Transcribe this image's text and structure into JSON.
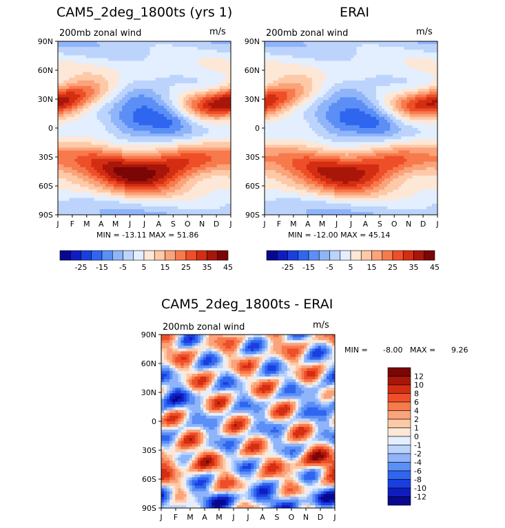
{
  "colors": {
    "scale": [
      "#08088f",
      "#0f1dc0",
      "#1a3fe0",
      "#2f66f0",
      "#5c8ff5",
      "#8fb4fa",
      "#bcd4fc",
      "#e3effe",
      "#fde7d6",
      "#fdc9a7",
      "#fba37a",
      "#f77a4d",
      "#ee4f28",
      "#d42e12",
      "#a8160a",
      "#7a0606"
    ],
    "frame": "#000000"
  },
  "months": [
    "J",
    "F",
    "M",
    "A",
    "M",
    "J",
    "J",
    "A",
    "S",
    "O",
    "N",
    "D",
    "J"
  ],
  "lats": [
    "90N",
    "60N",
    "30N",
    "0",
    "30S",
    "60S",
    "90S"
  ],
  "chart_data": [
    {
      "type": "heatmap",
      "title": "CAM5_2deg_1800ts (yrs 1)",
      "variable": "200mb zonal wind",
      "units": "m/s",
      "x": [
        "J",
        "F",
        "M",
        "A",
        "M",
        "J",
        "J",
        "A",
        "S",
        "O",
        "N",
        "D",
        "J"
      ],
      "y": [
        "90N",
        "60N",
        "30N",
        "0",
        "30S",
        "60S",
        "90S"
      ],
      "stats": "MIN = -13.11  MAX =  51.86",
      "colorbar_ticks": [
        "-25",
        "-15",
        "-5",
        "5",
        "15",
        "25",
        "35",
        "45"
      ],
      "contour_levels": [
        -35,
        -30,
        -25,
        -20,
        -15,
        -10,
        -5,
        0,
        5,
        10,
        15,
        20,
        25,
        30,
        35,
        40,
        45,
        50
      ],
      "features": {
        "nh_jet_peak_lat": 32,
        "nh_jet_peak": 45,
        "sh_jet_peak_lat": -30,
        "sh_jet_peak": 50,
        "equator_min": -13
      }
    },
    {
      "type": "heatmap",
      "title": "ERAI",
      "variable": "200mb zonal wind",
      "units": "m/s",
      "x": [
        "J",
        "F",
        "M",
        "A",
        "M",
        "J",
        "J",
        "A",
        "S",
        "O",
        "N",
        "D",
        "J"
      ],
      "y": [
        "90N",
        "60N",
        "30N",
        "0",
        "30S",
        "60S",
        "90S"
      ],
      "stats": "MIN = -12.00  MAX =  45.14",
      "colorbar_ticks": [
        "-25",
        "-15",
        "-5",
        "5",
        "15",
        "25",
        "35",
        "45"
      ],
      "features": {
        "nh_jet_peak_lat": 32,
        "nh_jet_peak": 40,
        "sh_jet_peak_lat": -30,
        "sh_jet_peak": 45,
        "equator_min": -12
      }
    },
    {
      "type": "heatmap",
      "title": "CAM5_2deg_1800ts - ERAI",
      "variable": "200mb zonal wind",
      "units": "m/s",
      "x": [
        "J",
        "F",
        "M",
        "A",
        "M",
        "J",
        "J",
        "A",
        "S",
        "O",
        "N",
        "D",
        "J"
      ],
      "y": [
        "90N",
        "60N",
        "30N",
        "0",
        "30S",
        "60S",
        "90S"
      ],
      "stats": {
        "min_label": "MIN = ",
        "min": "-8.00",
        "max_label": "MAX = ",
        "max": "9.26"
      },
      "colorbar_ticks": [
        "12",
        "10",
        "8",
        "6",
        "4",
        "2",
        "1",
        "0",
        "-1",
        "-2",
        "-4",
        "-6",
        "-8",
        "-10",
        "-12"
      ],
      "contour_levels": [
        -12,
        -10,
        -8,
        -6,
        -4,
        -2,
        -1,
        0,
        1,
        2,
        4,
        6,
        8,
        10,
        12
      ]
    }
  ]
}
